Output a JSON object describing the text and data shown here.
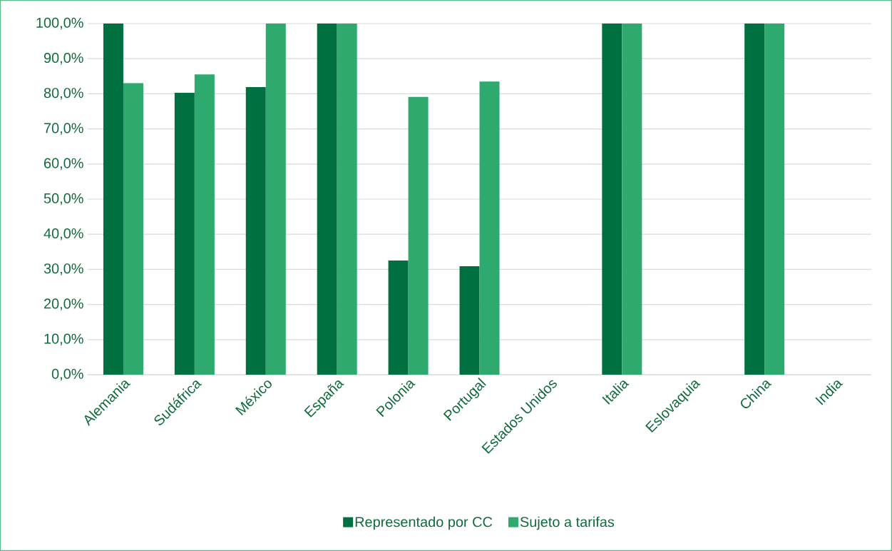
{
  "chart_data": {
    "type": "bar",
    "categories": [
      "Alemania",
      "Sudáfrica",
      "México",
      "España",
      "Polonia",
      "Portugal",
      "Estados Unidos",
      "Italia",
      "Eslovaquia",
      "China",
      "India"
    ],
    "series": [
      {
        "name": "Representado por CC",
        "color": "#007040",
        "values": [
          100,
          80.3,
          81.9,
          100,
          32.5,
          30.9,
          0,
          100,
          0,
          100,
          0
        ]
      },
      {
        "name": "Sujeto a tarifas",
        "color": "#2eaa6e",
        "values": [
          83,
          85.5,
          100,
          100,
          79.1,
          83.5,
          0,
          100,
          0,
          100,
          0
        ]
      }
    ],
    "ylim": [
      0,
      100
    ],
    "yticks": [
      {
        "value": 0,
        "label": "0,0%"
      },
      {
        "value": 10,
        "label": "10,0%"
      },
      {
        "value": 20,
        "label": "20,0%"
      },
      {
        "value": 30,
        "label": "30,0%"
      },
      {
        "value": 40,
        "label": "40,0%"
      },
      {
        "value": 50,
        "label": "50,0%"
      },
      {
        "value": 60,
        "label": "60,0%"
      },
      {
        "value": 70,
        "label": "70,0%"
      },
      {
        "value": 80,
        "label": "80,0%"
      },
      {
        "value": 90,
        "label": "90,0%"
      },
      {
        "value": 100,
        "label": "100,0%"
      }
    ],
    "grid": "y",
    "legend": "bottom"
  }
}
